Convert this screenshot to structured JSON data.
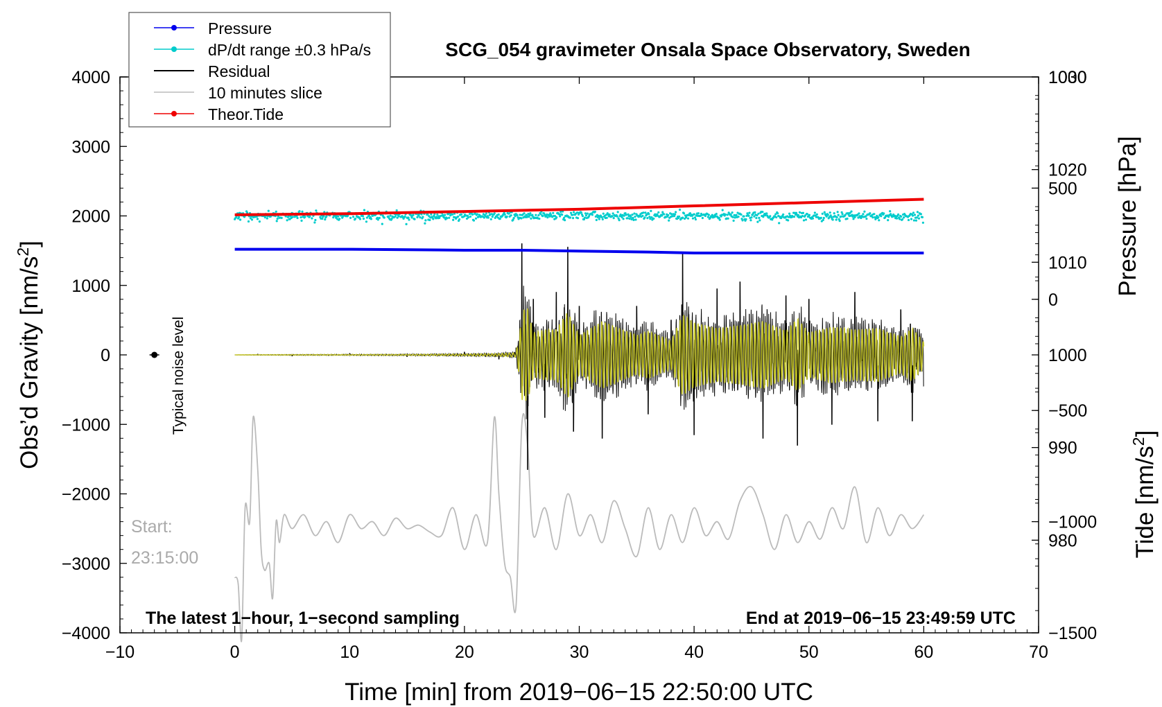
{
  "chart_data": {
    "type": "line",
    "title": "SCG_054 gravimeter Onsala Space Observatory, Sweden",
    "xlabel": "Time [min] from 2019−06−15 22:50:00 UTC",
    "ylabel": "Obs’d Gravity [nm/s",
    "ylabel_sup": "2",
    "ylabel_end": "]",
    "right_label_top": "Pressure [hPa]",
    "right_label_bottom": "Tide [nm/s",
    "right_label_bottom_sup": "2",
    "right_label_bottom_end": "]",
    "xlim": [
      -10,
      70
    ],
    "ylim": [
      -4000,
      4000
    ],
    "pressure_axis_range": [
      970,
      1030
    ],
    "tide_axis_range": [
      -1500,
      1000
    ],
    "x_ticks": [
      "−10",
      "0",
      "10",
      "20",
      "30",
      "40",
      "50",
      "60",
      "70"
    ],
    "y_ticks": [
      "−4000",
      "−3000",
      "−2000",
      "−1000",
      "0",
      "1000",
      "2000",
      "3000",
      "4000"
    ],
    "pressure_ticks": [
      "980",
      "990",
      "1000",
      "1010",
      "1020",
      "1030"
    ],
    "tide_ticks": [
      "−1500",
      "−1000",
      "−500",
      "0",
      "500",
      "1000"
    ],
    "legend": [
      {
        "name": "Pressure",
        "color": "#0000ee",
        "marker": true
      },
      {
        "name": "dP/dt range ±0.3 hPa/s",
        "color": "#00cccc",
        "marker": true
      },
      {
        "name": "Residual",
        "color": "#000000",
        "marker": false
      },
      {
        "name": "10 minutes slice",
        "color": "#bbbbbb",
        "marker": false
      },
      {
        "name": "Theor.Tide",
        "color": "#ee0000",
        "marker": true
      }
    ],
    "series": [
      {
        "name": "Pressure",
        "axis": "pressure",
        "x": [
          0,
          10,
          20,
          25,
          30,
          36,
          40,
          50,
          60
        ],
        "values": [
          1011.4,
          1011.4,
          1011.3,
          1011.3,
          1011.2,
          1011.1,
          1011.0,
          1011.0,
          1011.0
        ]
      },
      {
        "name": "dP/dt range ±0.3 hPa/s",
        "axis": "gravity",
        "x": [
          0,
          60
        ],
        "values": [
          2000,
          2000
        ],
        "spread": 60
      },
      {
        "name": "Residual",
        "axis": "gravity",
        "x": [
          0,
          2,
          5,
          10,
          15,
          20,
          23,
          24.5,
          25,
          25.5,
          26,
          27,
          28,
          29,
          29.5,
          30,
          32,
          35,
          36,
          38,
          39,
          40,
          42,
          44,
          46,
          48,
          49,
          50,
          52,
          54,
          56,
          58,
          59,
          60
        ],
        "values": [
          0,
          10,
          -15,
          20,
          -25,
          40,
          -60,
          100,
          1600,
          -1650,
          800,
          -900,
          900,
          1550,
          -1100,
          700,
          -1200,
          700,
          -850,
          500,
          1450,
          -1150,
          950,
          1050,
          -1200,
          850,
          -1300,
          800,
          -1000,
          900,
          -950,
          650,
          -950,
          -450
        ]
      },
      {
        "name": "10 minutes slice",
        "axis": "gravity",
        "x": [
          0,
          0.3,
          0.6,
          0.9,
          1.3,
          1.6,
          2.0,
          2.3,
          2.6,
          3.0,
          3.3,
          3.6,
          3.9,
          4.3,
          5,
          6,
          7,
          8,
          9,
          10,
          11,
          12,
          13,
          14,
          15,
          16,
          17,
          18,
          19,
          20,
          21,
          22,
          22.6,
          23,
          23.5,
          24,
          24.5,
          25,
          25.5,
          26,
          27,
          28,
          29,
          30,
          31,
          32,
          33,
          34,
          35,
          36,
          37,
          38,
          39,
          40,
          41,
          42,
          43,
          44,
          45,
          46,
          47,
          48,
          49,
          50,
          51,
          52,
          53,
          54,
          55,
          56,
          57,
          58,
          59,
          60
        ],
        "values": [
          -3200,
          -3300,
          -4100,
          -2200,
          -2400,
          -900,
          -1650,
          -2800,
          -3100,
          -3000,
          -3500,
          -2400,
          -2700,
          -2300,
          -2500,
          -2300,
          -2600,
          -2400,
          -2700,
          -2300,
          -2500,
          -2400,
          -2600,
          -2350,
          -2500,
          -2450,
          -2550,
          -2600,
          -2200,
          -2800,
          -2300,
          -2700,
          -900,
          -2000,
          -3000,
          -3200,
          -3600,
          -1000,
          -1300,
          -2600,
          -2200,
          -2800,
          -2000,
          -2600,
          -2300,
          -2700,
          -2100,
          -2500,
          -2900,
          -2200,
          -2800,
          -2300,
          -2700,
          -2200,
          -2600,
          -2400,
          -2650,
          -2100,
          -1900,
          -2300,
          -2800,
          -2300,
          -2700,
          -2400,
          -2650,
          -2200,
          -2500,
          -1900,
          -2700,
          -2200,
          -2600,
          -2300,
          -2500,
          -2300
        ]
      },
      {
        "name": "Theor.Tide",
        "axis": "tide",
        "x": [
          0,
          10,
          20,
          30,
          40,
          50,
          60
        ],
        "values": [
          380,
          385,
          395,
          405,
          420,
          435,
          450
        ]
      }
    ],
    "annotations": {
      "noise_label": "Typical noise level",
      "noise_value": 0,
      "noise_x": -7,
      "start_label": "Start:",
      "start_time": "23:15:00",
      "bottom_left": "The latest 1−hour, 1−second sampling",
      "bottom_right": "End at 2019−06−15 23:49:59 UTC"
    }
  }
}
